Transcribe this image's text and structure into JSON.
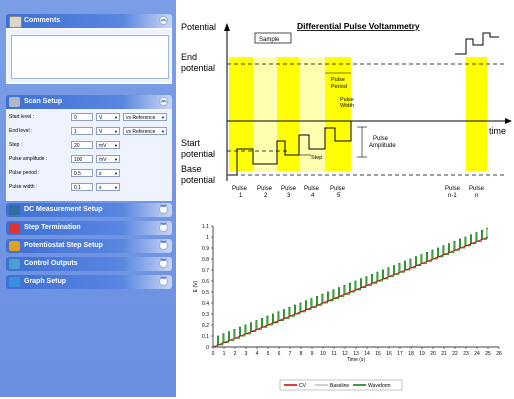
{
  "panels": {
    "comments": {
      "label": "Comments",
      "icon": "notepad-icon"
    },
    "scan_setup": {
      "label": "Scan Setup",
      "icon": "wrench-icon"
    },
    "dc_setup": {
      "label": "DC Measurement Setup",
      "icon": "dc-measurement-icon"
    },
    "step_termination": {
      "label": "Step Termination",
      "icon": "stop-x-icon"
    },
    "potentiostat_step": {
      "label": "Potentiostat Step Setup",
      "icon": "potentiostat-icon"
    },
    "control_outputs": {
      "label": "Control Outputs",
      "icon": "control-outputs-icon"
    },
    "graph_setup": {
      "label": "Graph Setup",
      "icon": "graph-icon"
    }
  },
  "scan": {
    "start_level": {
      "label": "Start level :",
      "value": "0",
      "unit": "V",
      "ref": "vs Reference"
    },
    "end_level": {
      "label": "End level :",
      "value": "1",
      "unit": "V",
      "ref": "vs Reference"
    },
    "step": {
      "label": "Step :",
      "value": "20",
      "unit": "mV"
    },
    "pulse_amplitude": {
      "label": "Pulse amplitude :",
      "value": "100",
      "unit": "mV"
    },
    "pulse_period": {
      "label": "Pulse period :",
      "value": "0.5",
      "unit": "s"
    },
    "pulse_width": {
      "label": "Pulse width :",
      "value": "0.1",
      "unit": "s"
    }
  },
  "diagram": {
    "title": "Differential Pulse Voltammetry",
    "potential": "Potential",
    "end_potential": [
      "End",
      "potential"
    ],
    "start_potential": [
      "Start",
      "potential"
    ],
    "base_potential": [
      "Base",
      "potential"
    ],
    "time": "time",
    "sample": "Sample",
    "pulse_period": [
      "Pulse",
      "Period"
    ],
    "pulse_width": [
      "Pulse",
      "Width"
    ],
    "pulse_amplitude": [
      "Pulse",
      "Amplitude"
    ],
    "step": "Step",
    "pulse_labels": [
      [
        "Pulse",
        "1"
      ],
      [
        "Pulse",
        "2"
      ],
      [
        "Pulse",
        "3"
      ],
      [
        "Pulse",
        "4"
      ],
      [
        "Pulse",
        "5"
      ],
      [
        "Pulse",
        "n-1"
      ],
      [
        "Pulse",
        "n"
      ]
    ],
    "colors": {
      "yellow": "#ffff00",
      "light_yellow": "#ffffb0",
      "waveform": "#000000"
    }
  },
  "chart_data": {
    "type": "line",
    "xlabel": "Time (s)",
    "ylabel": "E (V)",
    "xlim": [
      0,
      26
    ],
    "ylim": [
      0,
      1.1
    ],
    "xticks": [
      "0",
      "1",
      "2",
      "3",
      "4",
      "5",
      "6",
      "7",
      "8",
      "9",
      "10",
      "11",
      "12",
      "13",
      "14",
      "15",
      "16",
      "17",
      "18",
      "19",
      "20",
      "21",
      "22",
      "23",
      "24",
      "25",
      "26"
    ],
    "yticks": [
      "0",
      "0.1",
      "0.2",
      "0.3",
      "0.4",
      "0.5",
      "0.6",
      "0.7",
      "0.8",
      "0.9",
      "1",
      "1.1"
    ],
    "grid": false,
    "legend_position": "bottom",
    "series": [
      {
        "name": "CV",
        "color": "#cc0000",
        "x": [
          0,
          25
        ],
        "y": [
          0,
          1.0
        ]
      },
      {
        "name": "Baseline",
        "color": "#c0c0c0",
        "x": [
          0,
          25
        ],
        "y": [
          0,
          1.0
        ]
      },
      {
        "name": "Waveform",
        "color": "#007a00",
        "pulse_period": 0.5,
        "pulse_width": 0.1,
        "step": 0.02,
        "pulse_amplitude": 0.1,
        "x": [
          0,
          25
        ],
        "y": [
          0,
          1.0
        ]
      }
    ]
  }
}
